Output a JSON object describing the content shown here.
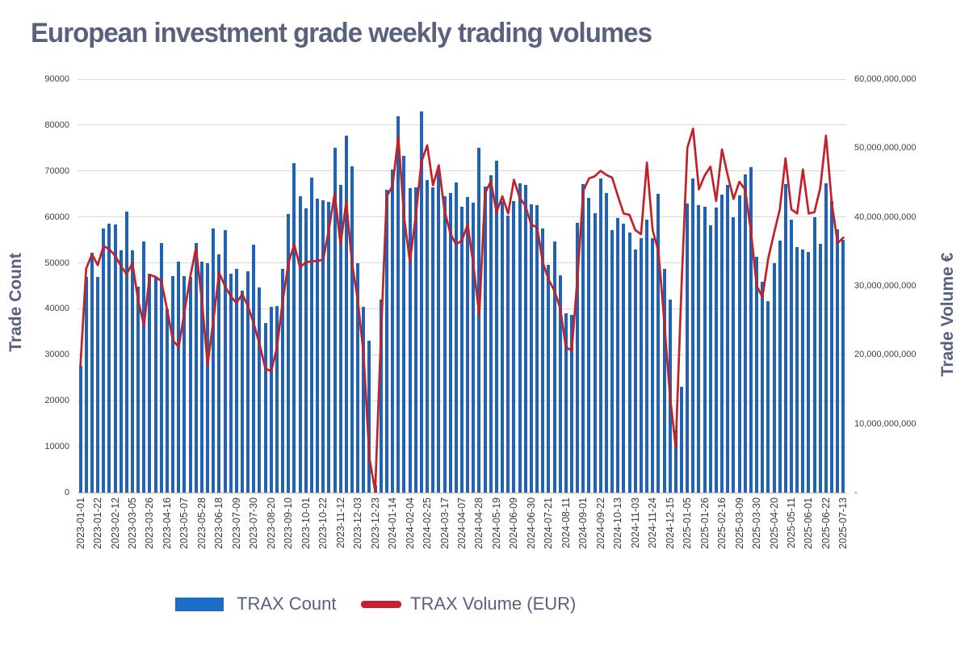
{
  "title": "European investment grade weekly trading volumes",
  "left_axis": {
    "title": "Trade Count",
    "min": 0,
    "max": 90000,
    "ticks": [
      "0",
      "10000",
      "20000",
      "30000",
      "40000",
      "50000",
      "60000",
      "70000",
      "80000",
      "90000"
    ]
  },
  "right_axis": {
    "title": "Trade Volume €",
    "min": 0,
    "max": 60000000000,
    "ticks": [
      "-",
      "10,000,000,000",
      "20,000,000,000",
      "30,000,000,000",
      "40,000,000,000",
      "50,000,000,000",
      "60,000,000,000"
    ]
  },
  "legend": {
    "items": [
      {
        "label": "TRAX Count",
        "color": "#1b6ec8",
        "marker": "bar"
      },
      {
        "label": "TRAX Volume (EUR)",
        "color": "#c7202a",
        "marker": "line"
      }
    ]
  },
  "colors": {
    "bar": "#2062b4",
    "line": "#c32129",
    "grid": "#d9d9d9",
    "text_slate": "#59617f",
    "tick_text": "#404040"
  },
  "chart_data": {
    "type": "bar",
    "subtype": "bar+line dual axis",
    "grid": "horizontal on",
    "legend_position": "bottom",
    "x_labels_shown_every": 3,
    "left_ylim": [
      0,
      90000
    ],
    "right_ylim": [
      0,
      60000000000
    ],
    "x": [
      "2023-01-01",
      "2023-01-08",
      "2023-01-15",
      "2023-01-22",
      "2023-01-29",
      "2023-02-05",
      "2023-02-12",
      "2023-02-19",
      "2023-02-26",
      "2023-03-05",
      "2023-03-12",
      "2023-03-19",
      "2023-03-26",
      "2023-04-02",
      "2023-04-09",
      "2023-04-16",
      "2023-04-23",
      "2023-04-30",
      "2023-05-07",
      "2023-05-14",
      "2023-05-21",
      "2023-05-28",
      "2023-06-04",
      "2023-06-11",
      "2023-06-18",
      "2023-06-25",
      "2023-07-02",
      "2023-07-09",
      "2023-07-16",
      "2023-07-23",
      "2023-07-30",
      "2023-08-06",
      "2023-08-13",
      "2023-08-20",
      "2023-08-27",
      "2023-09-03",
      "2023-09-10",
      "2023-09-17",
      "2023-09-24",
      "2023-10-01",
      "2023-10-08",
      "2023-10-15",
      "2023-10-22",
      "2023-10-29",
      "2023-11-05",
      "2023-11-12",
      "2023-11-19",
      "2023-11-26",
      "2023-12-03",
      "2023-12-10",
      "2023-12-17",
      "2023-12-23",
      "2023-12-31",
      "2024-01-07",
      "2024-01-14",
      "2024-01-21",
      "2024-01-28",
      "2024-02-04",
      "2024-02-11",
      "2024-02-18",
      "2024-02-25",
      "2024-03-03",
      "2024-03-10",
      "2024-03-17",
      "2024-03-24",
      "2024-03-31",
      "2024-04-07",
      "2024-04-14",
      "2024-04-21",
      "2024-04-28",
      "2024-05-05",
      "2024-05-12",
      "2024-05-19",
      "2024-05-26",
      "2024-06-02",
      "2024-06-09",
      "2024-06-16",
      "2024-06-23",
      "2024-06-30",
      "2024-07-07",
      "2024-07-14",
      "2024-07-21",
      "2024-07-28",
      "2024-08-04",
      "2024-08-11",
      "2024-08-18",
      "2024-08-25",
      "2024-09-01",
      "2024-09-08",
      "2024-09-15",
      "2024-09-22",
      "2024-09-29",
      "2024-10-06",
      "2024-10-13",
      "2024-10-20",
      "2024-10-27",
      "2024-11-03",
      "2024-11-10",
      "2024-11-17",
      "2024-11-24",
      "2024-12-01",
      "2024-12-08",
      "2024-12-15",
      "2024-12-22",
      "2024-12-29",
      "2025-01-05",
      "2025-01-12",
      "2025-01-19",
      "2025-01-26",
      "2025-02-02",
      "2025-02-09",
      "2025-02-16",
      "2025-02-23",
      "2025-03-02",
      "2025-03-09",
      "2025-03-16",
      "2025-03-23",
      "2025-03-30",
      "2025-04-06",
      "2025-04-13",
      "2025-04-20",
      "2025-04-27",
      "2025-05-04",
      "2025-05-11",
      "2025-05-18",
      "2025-05-25",
      "2025-06-01",
      "2025-06-08",
      "2025-06-15",
      "2025-06-22",
      "2025-06-29",
      "2025-07-06",
      "2025-07-13"
    ],
    "series": [
      {
        "name": "TRAX Count",
        "type": "bar",
        "axis": "left",
        "unit": "trades",
        "values": [
          27600,
          46900,
          52200,
          46900,
          57500,
          58500,
          58300,
          52700,
          61100,
          52700,
          44900,
          54600,
          47600,
          46900,
          54400,
          39900,
          47100,
          50300,
          47100,
          46900,
          54300,
          50200,
          49900,
          57500,
          51900,
          57100,
          47600,
          48700,
          44000,
          48100,
          54000,
          44600,
          37000,
          40500,
          40600,
          48700,
          60700,
          71800,
          64500,
          61900,
          68600,
          64000,
          63600,
          63300,
          75100,
          67000,
          77700,
          71000,
          49900,
          40500,
          33000,
          1500,
          42000,
          66000,
          70400,
          81900,
          73300,
          66300,
          66500,
          83000,
          68000,
          66500,
          70800,
          64600,
          65200,
          67500,
          62300,
          64300,
          63100,
          75100,
          66600,
          69100,
          72300,
          63400,
          60300,
          63400,
          67300,
          67000,
          62800,
          62500,
          57500,
          49600,
          54600,
          47300,
          39000,
          38700,
          58700,
          67200,
          64200,
          60900,
          68300,
          65200,
          57200,
          59800,
          58500,
          56600,
          52900,
          55300,
          59400,
          55400,
          65100,
          48700,
          42000,
          13500,
          23000,
          62900,
          68300,
          62500,
          62200,
          58100,
          62000,
          64900,
          67000,
          59900,
          64700,
          69300,
          70800,
          51300,
          45800,
          41700,
          50000,
          54900,
          67100,
          59500,
          53500,
          52900,
          52300,
          59900,
          54100,
          67400,
          63400,
          57300,
          55100
        ]
      },
      {
        "name": "TRAX Volume (EUR)",
        "type": "line",
        "axis": "right",
        "unit": "EUR billions",
        "values_eur_billions": [
          18.4,
          32.5,
          34.6,
          33.0,
          35.8,
          35.3,
          34.4,
          32.9,
          31.7,
          33.3,
          27.8,
          24.3,
          31.6,
          31.3,
          30.7,
          26.6,
          22.1,
          21.1,
          26.2,
          31.3,
          35.5,
          28.0,
          18.6,
          25.0,
          31.9,
          30.0,
          28.5,
          27.5,
          28.8,
          27.0,
          24.5,
          21.5,
          18.0,
          17.6,
          21.0,
          27.8,
          33.4,
          36.0,
          32.7,
          33.4,
          33.6,
          33.6,
          33.8,
          38.3,
          43.4,
          36.0,
          42.2,
          33.3,
          27.8,
          20.0,
          5.0,
          0.2,
          22.7,
          43.0,
          44.5,
          51.6,
          40.0,
          33.5,
          40.0,
          48.0,
          50.4,
          44.6,
          47.5,
          40.9,
          37.6,
          36.0,
          36.6,
          38.9,
          33.0,
          25.8,
          43.4,
          45.2,
          40.7,
          43.0,
          40.5,
          45.4,
          42.8,
          41.6,
          38.9,
          38.5,
          33.4,
          30.9,
          29.3,
          26.8,
          21.1,
          20.6,
          31.3,
          43.8,
          45.6,
          45.9,
          46.7,
          46.1,
          45.7,
          43.0,
          40.5,
          40.3,
          38.1,
          37.5,
          47.9,
          38.1,
          35.0,
          25.0,
          14.0,
          6.6,
          30.0,
          50.0,
          52.8,
          44.0,
          46.0,
          47.3,
          42.3,
          49.8,
          46.0,
          42.6,
          45.1,
          44.0,
          38.0,
          30.0,
          28.4,
          34.0,
          37.6,
          41.1,
          48.5,
          41.1,
          40.5,
          46.9,
          40.5,
          40.7,
          44.2,
          51.8,
          42.0,
          36.2,
          37.0
        ]
      }
    ]
  }
}
